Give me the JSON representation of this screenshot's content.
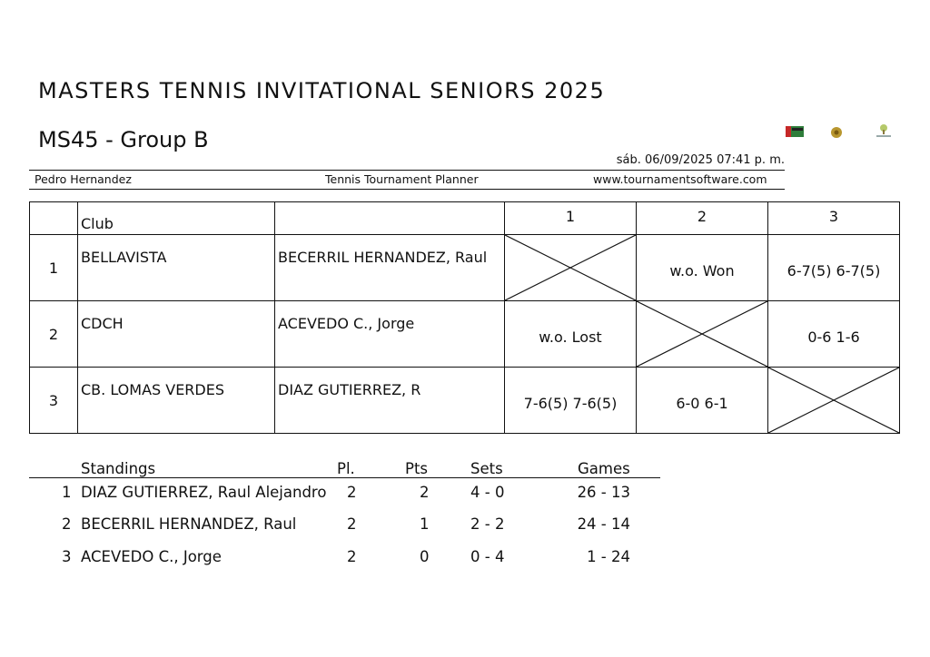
{
  "title": "MASTERS TENNIS INVITATIONAL SENIORS 2025",
  "subtitle": "MS45 - Group B",
  "datetime": "sáb. 06/09/2025 07:41 p. m.",
  "meta": {
    "left": "Pedro Hernandez",
    "center": "Tennis Tournament Planner",
    "right": "www.tournamentsoftware.com"
  },
  "logos": [
    "sponsor-logo-flag",
    "sponsor-logo-seal",
    "sponsor-logo-tree"
  ],
  "draw": {
    "club_header": "Club",
    "columns": [
      "1",
      "2",
      "3"
    ],
    "rows": [
      {
        "pos": "1",
        "club": "BELLAVISTA",
        "player": "BECERRIL HERNANDEZ, Raul",
        "scores": [
          null,
          "w.o. Won",
          "6-7(5) 6-7(5)"
        ]
      },
      {
        "pos": "2",
        "club": "CDCH",
        "player": "ACEVEDO C., Jorge",
        "scores": [
          "w.o. Lost",
          null,
          "0-6 1-6"
        ]
      },
      {
        "pos": "3",
        "club": "CB. LOMAS VERDES",
        "player": "DIAZ GUTIERREZ, R",
        "scores": [
          "7-6(5) 7-6(5)",
          "6-0 6-1",
          null
        ]
      }
    ]
  },
  "standings": {
    "headers": {
      "name": "Standings",
      "played": "Pl.",
      "points": "Pts",
      "sets": "Sets",
      "games": "Games"
    },
    "rows": [
      {
        "rank": "1",
        "name": "DIAZ GUTIERREZ, Raul Alejandro",
        "played": "2",
        "points": "2",
        "sets": "4 - 0",
        "games": "26 - 13"
      },
      {
        "rank": "2",
        "name": "BECERRIL HERNANDEZ, Raul",
        "played": "2",
        "points": "1",
        "sets": "2 - 2",
        "games": "24 - 14"
      },
      {
        "rank": "3",
        "name": "ACEVEDO C., Jorge",
        "played": "2",
        "points": "0",
        "sets": "0 - 4",
        "games": "1 - 24"
      }
    ]
  }
}
